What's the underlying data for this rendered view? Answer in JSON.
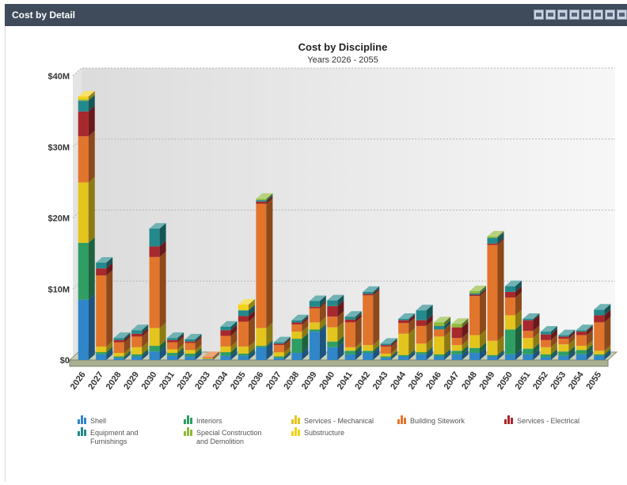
{
  "panel": {
    "title": "Cost by Detail",
    "tools": [
      "filter-icon",
      "filter-icon",
      "export-icon",
      "filter-icon",
      "print-icon",
      "help-icon",
      "export-icon",
      "window-icon"
    ]
  },
  "chart_data": {
    "type": "bar",
    "stacked": true,
    "three_d": true,
    "title": "Cost by Discipline",
    "subtitle": "Years 2026 - 2055",
    "xlabel": "",
    "ylabel": "",
    "ylim": [
      0,
      40
    ],
    "yticks": [
      0,
      10,
      20,
      30,
      40
    ],
    "ytick_labels": [
      "$0",
      "$10M",
      "$20M",
      "$30M",
      "$40M"
    ],
    "grid": true,
    "legend_position": "bottom",
    "categories": [
      "2026",
      "2027",
      "2028",
      "2029",
      "2030",
      "2031",
      "2032",
      "2033",
      "2034",
      "2035",
      "2036",
      "2037",
      "2038",
      "2039",
      "2040",
      "2041",
      "2042",
      "2043",
      "2044",
      "2045",
      "2046",
      "2047",
      "2048",
      "2049",
      "2050",
      "2051",
      "2052",
      "2053",
      "2054",
      "2055"
    ],
    "series": [
      {
        "name": "Shell",
        "color": "#2f86c8",
        "values": [
          8.5,
          0.8,
          0.3,
          0.5,
          1.2,
          0.6,
          0.5,
          0.1,
          0.6,
          0.6,
          1.8,
          0.3,
          1.0,
          4.0,
          1.8,
          0.8,
          1.0,
          0.3,
          0.5,
          0.8,
          0.5,
          0.8,
          1.0,
          0.5,
          0.8,
          0.8,
          0.4,
          0.6,
          0.8,
          0.6
        ]
      },
      {
        "name": "Interiors",
        "color": "#2e9e63",
        "values": [
          8.0,
          0.3,
          0.2,
          0.3,
          0.8,
          0.4,
          0.4,
          0.0,
          0.5,
          0.3,
          0.2,
          0.2,
          2.0,
          0.3,
          0.8,
          0.5,
          0.3,
          0.2,
          0.2,
          0.3,
          0.3,
          0.5,
          0.7,
          0.2,
          3.5,
          0.8,
          0.4,
          0.6,
          0.6,
          0.2
        ]
      },
      {
        "name": "Services - Mechanical",
        "color": "#e3c51e",
        "values": [
          8.5,
          0.8,
          0.5,
          1.0,
          2.5,
          0.5,
          0.5,
          0.1,
          0.8,
          1.0,
          2.5,
          0.6,
          1.0,
          1.0,
          2.0,
          0.5,
          0.8,
          0.4,
          3.0,
          1.2,
          2.5,
          0.8,
          1.8,
          2.0,
          2.0,
          1.5,
          1.0,
          1.0,
          0.6,
          0.5
        ]
      },
      {
        "name": "Building Sitework",
        "color": "#e2752c",
        "values": [
          6.5,
          10.0,
          1.5,
          1.5,
          10.0,
          1.0,
          1.0,
          0.2,
          1.5,
          3.5,
          17.5,
          1.0,
          1.0,
          2.0,
          1.5,
          3.5,
          7.0,
          1.0,
          1.5,
          2.5,
          1.0,
          1.0,
          5.5,
          13.5,
          2.5,
          1.0,
          1.0,
          0.8,
          1.5,
          4.0
        ]
      },
      {
        "name": "Services - Electrical",
        "color": "#a7282d",
        "values": [
          3.5,
          1.0,
          0.3,
          0.4,
          1.5,
          0.3,
          0.2,
          0.0,
          0.8,
          0.8,
          0.3,
          0.2,
          0.3,
          0.2,
          1.5,
          0.4,
          0.2,
          0.2,
          0.4,
          0.8,
          0.0,
          1.5,
          0.2,
          0.2,
          0.8,
          1.5,
          0.8,
          0.3,
          0.5,
          1.0
        ]
      },
      {
        "name": "Equipment and Furnishings",
        "color": "#23898c",
        "values": [
          1.5,
          0.8,
          0.3,
          0.5,
          2.5,
          0.3,
          0.3,
          0.0,
          0.5,
          0.8,
          0.2,
          0.2,
          0.3,
          0.8,
          0.8,
          0.4,
          0.3,
          0.2,
          0.2,
          1.4,
          0.5,
          0.0,
          0.2,
          0.8,
          0.8,
          0.2,
          0.4,
          0.2,
          0.2,
          0.8
        ]
      },
      {
        "name": "Special Construction and Demolition",
        "color": "#8fba3a",
        "values": [
          0.2,
          0.0,
          0.0,
          0.0,
          0.0,
          0.0,
          0.0,
          0.0,
          0.0,
          0.0,
          0.2,
          0.0,
          0.0,
          0.0,
          0.0,
          0.0,
          0.0,
          0.0,
          0.0,
          0.0,
          0.5,
          0.5,
          0.3,
          0.2,
          0.0,
          0.0,
          0.0,
          0.0,
          0.0,
          0.0
        ]
      },
      {
        "name": "Substructure",
        "color": "#f2d21a",
        "values": [
          0.4,
          0.0,
          0.0,
          0.0,
          0.0,
          0.0,
          0.0,
          0.0,
          0.0,
          0.8,
          0.0,
          0.0,
          0.0,
          0.0,
          0.0,
          0.0,
          0.0,
          0.0,
          0.0,
          0.0,
          0.0,
          0.0,
          0.0,
          0.0,
          0.0,
          0.0,
          0.0,
          0.0,
          0.0,
          0.0
        ]
      }
    ],
    "legend": [
      {
        "label": "Shell",
        "series": 0
      },
      {
        "label": "Interiors",
        "series": 1
      },
      {
        "label": "Services - Mechanical",
        "series": 2
      },
      {
        "label": "Building Sitework",
        "series": 3
      },
      {
        "label": "Services - Electrical",
        "series": 4
      },
      {
        "label": "Equipment and Furnishings",
        "series": 5
      },
      {
        "label": "Special Construction and Demolition",
        "series": 6
      },
      {
        "label": "Substructure",
        "series": 7
      }
    ]
  }
}
